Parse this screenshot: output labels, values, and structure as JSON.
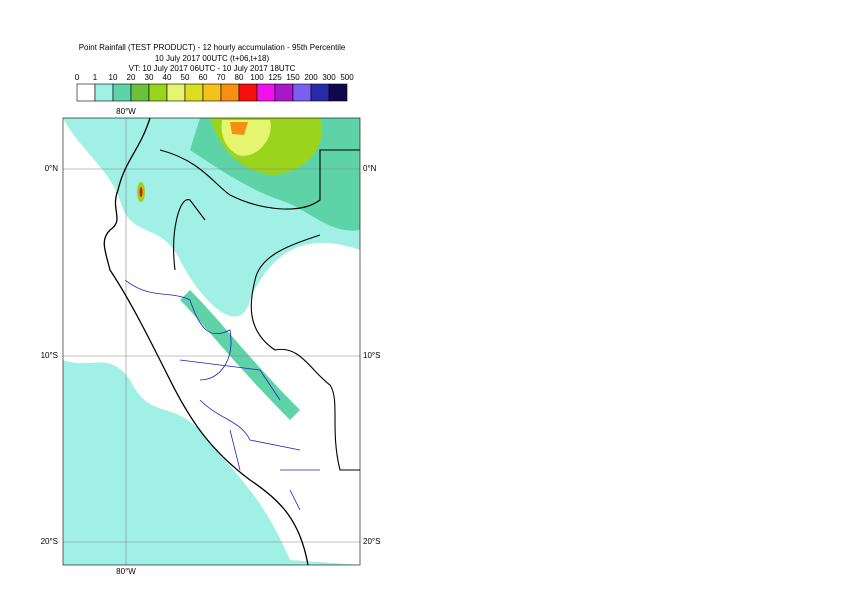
{
  "header": {
    "lines": [
      "Point Rainfall (TEST PRODUCT) - 12 hourly accumulation - 95th Percentile",
      "10 July 2017 00UTC (t+06,t+18)",
      "VT: 10 July 2017 06UTC - 10 July 2017 18UTC"
    ]
  },
  "legend": {
    "labels": [
      0,
      1,
      10,
      20,
      30,
      40,
      50,
      60,
      70,
      80,
      100,
      125,
      150,
      200,
      300,
      500
    ],
    "colors": [
      "#ffffff",
      "#a0f0e6",
      "#5fd3a8",
      "#6ac23c",
      "#9ad41c",
      "#e6f570",
      "#dcdc22",
      "#f5c21b",
      "#f98e13",
      "#f21010",
      "#f010f0",
      "#a818c8",
      "#7a60f0",
      "#2a2aa8",
      "#10084e"
    ]
  },
  "map": {
    "lon_top": "80°W",
    "lon_bottom": "80°W",
    "lat_left": [
      "0°N",
      "10°S",
      "20°S"
    ],
    "lat_right": [
      "0°N",
      "10°S",
      "20°S"
    ]
  }
}
